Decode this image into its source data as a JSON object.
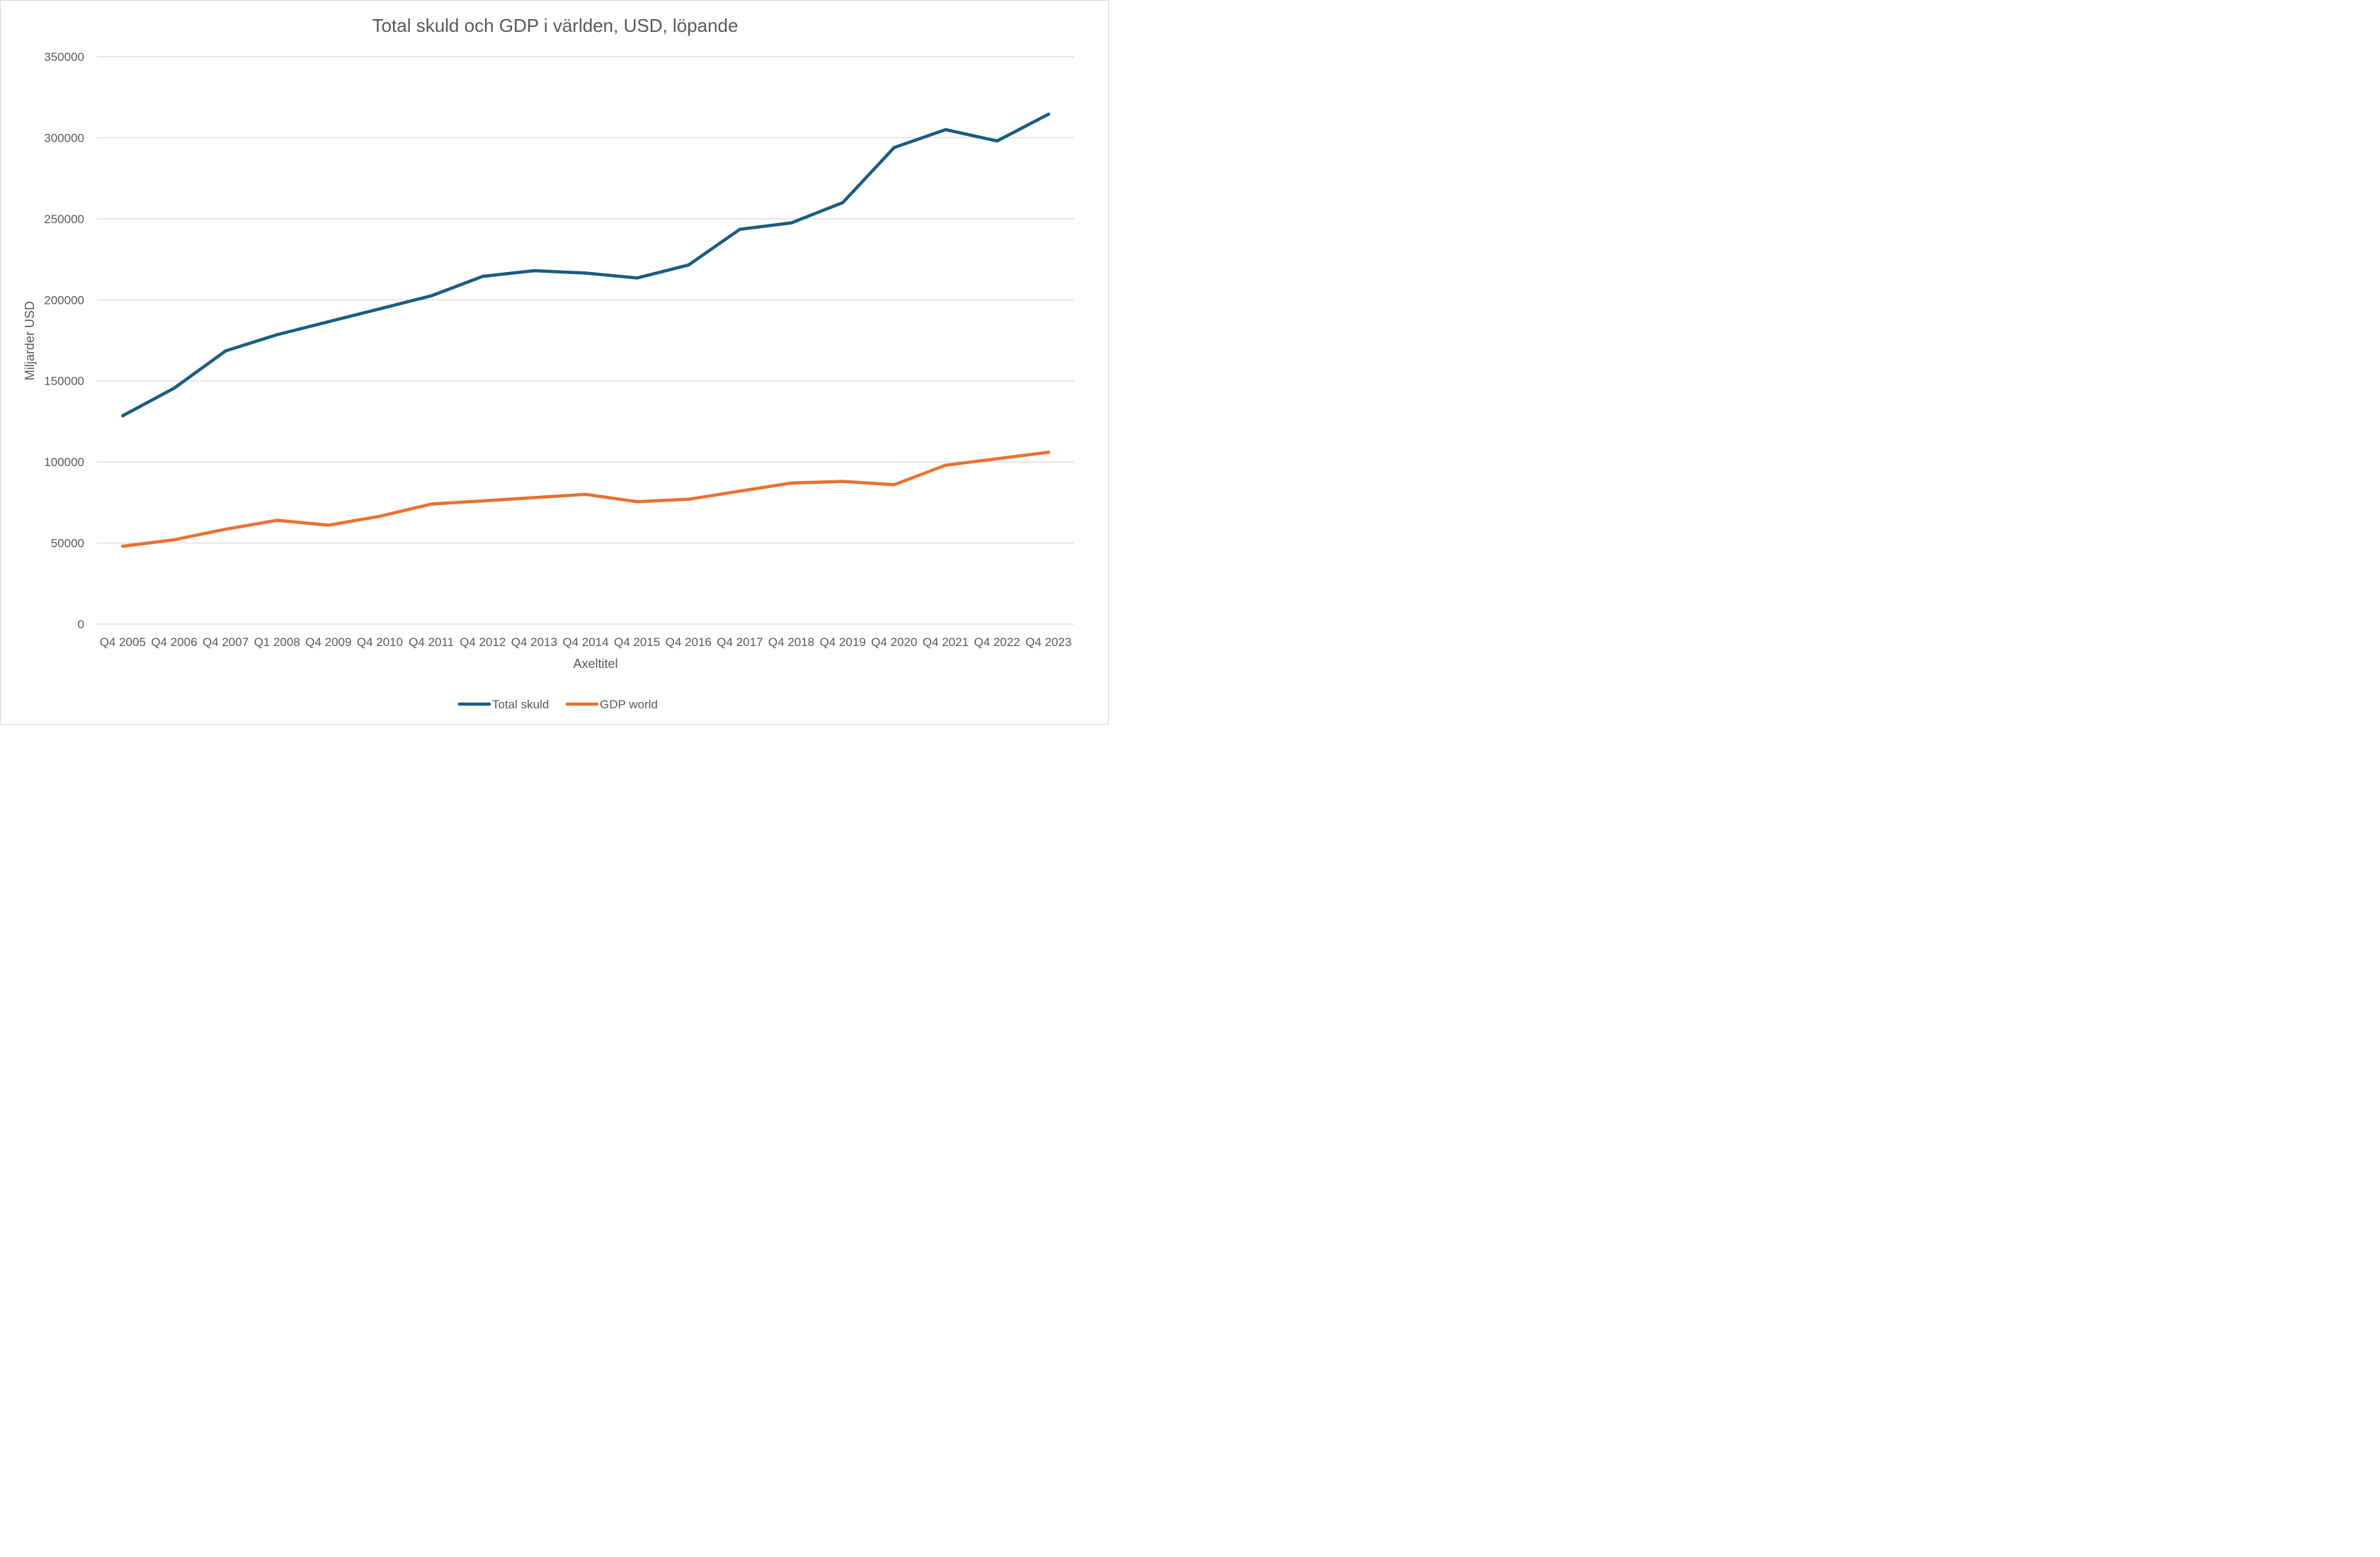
{
  "chart_data": {
    "type": "line",
    "title": "Total skuld och GDP i världen, USD, löpande",
    "xlabel": "Axeltitel",
    "ylabel": "Miljarder USD",
    "ylim": [
      0,
      350000
    ],
    "yticks": [
      0,
      50000,
      100000,
      150000,
      200000,
      250000,
      300000,
      350000
    ],
    "grid": true,
    "legend_position": "bottom",
    "categories": [
      "Q4 2005",
      "Q4 2006",
      "Q4 2007",
      "Q1 2008",
      "Q4 2009",
      "Q4 2010",
      "Q4 2011",
      "Q4 2012",
      "Q4 2013",
      "Q4 2014",
      "Q4 2015",
      "Q4 2016",
      "Q4 2017",
      "Q4 2018",
      "Q4 2019",
      "Q4 2020",
      "Q4 2021",
      "Q4 2022",
      "Q4 2023"
    ],
    "series": [
      {
        "name": "Total skuld",
        "color": "#1a5d80",
        "values": [
          128500,
          145500,
          168500,
          178500,
          186500,
          194500,
          202500,
          214500,
          218000,
          216500,
          213500,
          221500,
          243500,
          247500,
          260000,
          294000,
          305000,
          298000,
          314500
        ]
      },
      {
        "name": "GDP world",
        "color": "#e97132",
        "values": [
          48000,
          52000,
          58500,
          64000,
          61000,
          66500,
          74000,
          76000,
          78000,
          80000,
          75500,
          77000,
          82000,
          87000,
          88000,
          86000,
          98000,
          102000,
          106000
        ]
      }
    ]
  }
}
